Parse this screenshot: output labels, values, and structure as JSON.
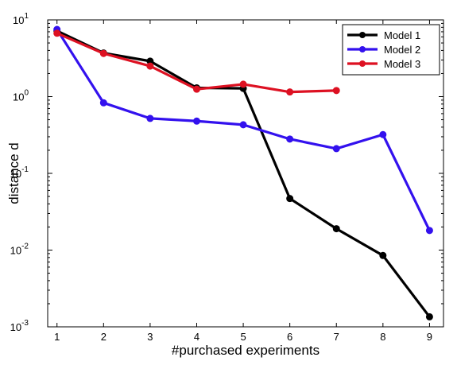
{
  "chart_data": {
    "type": "line",
    "xlabel": "#purchased experiments",
    "ylabel": "distance d",
    "xlim": [
      0.8,
      9.3
    ],
    "ylim": [
      0.001,
      10
    ],
    "yscale": "log",
    "x_ticks": [
      "1",
      "2",
      "3",
      "4",
      "5",
      "6",
      "7",
      "8",
      "9"
    ],
    "y_ticks": [
      {
        "base": "10",
        "exp": "1",
        "value": 10
      },
      {
        "base": "10",
        "exp": "0",
        "value": 1
      },
      {
        "base": "10",
        "exp": "-1",
        "value": 0.1
      },
      {
        "base": "10",
        "exp": "-2",
        "value": 0.01
      },
      {
        "base": "10",
        "exp": "-3",
        "value": 0.001
      }
    ],
    "grid": false,
    "legend_position": "top-right",
    "series": [
      {
        "name": "Model 1",
        "color": "#000000",
        "x": [
          1,
          2,
          3,
          4,
          5,
          6,
          7,
          8,
          9
        ],
        "y": [
          7.2,
          3.7,
          2.9,
          1.3,
          1.28,
          0.047,
          0.019,
          0.0085,
          0.00135
        ]
      },
      {
        "name": "Model 2",
        "color": "#3311ee",
        "x": [
          1,
          2,
          3,
          4,
          5,
          6,
          7,
          8,
          9
        ],
        "y": [
          7.5,
          0.83,
          0.52,
          0.48,
          0.43,
          0.28,
          0.21,
          0.32,
          0.018
        ]
      },
      {
        "name": "Model 3",
        "color": "#dd1122",
        "x": [
          1,
          2,
          3,
          4,
          5,
          6,
          7
        ],
        "y": [
          6.7,
          3.65,
          2.5,
          1.25,
          1.45,
          1.15,
          1.2
        ]
      }
    ]
  }
}
